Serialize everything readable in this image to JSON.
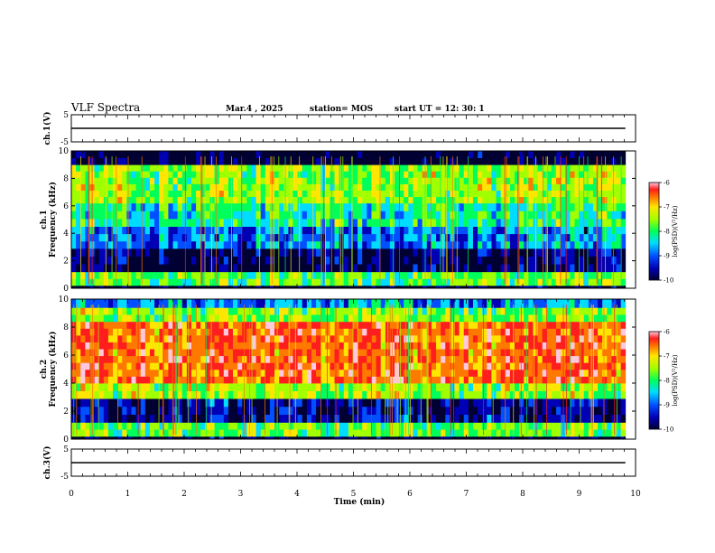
{
  "header": {
    "title": "VLF Spectra",
    "date": "Mar.4 , 2025",
    "station": "station= MOS",
    "start_ut": "start UT =  12: 30: 1"
  },
  "chart_data": [
    {
      "type": "line",
      "name": "ch1-voltage",
      "ylabel": "ch.1(V)",
      "ylim": [
        -5,
        5
      ],
      "yticks": [
        "5",
        "-5"
      ],
      "x": [
        0,
        9.82
      ],
      "values": [
        0,
        0
      ],
      "color": "#000000"
    },
    {
      "type": "heatmap",
      "name": "ch1-spectrogram",
      "ylabel": "ch.1\nFrequency (kHz)",
      "ylim": [
        0,
        10
      ],
      "yticks": [
        "0",
        "2",
        "4",
        "6",
        "8",
        "10"
      ],
      "xlim": [
        0,
        10
      ],
      "data_end_min": 9.82,
      "bands_khz": [
        {
          "from": 0.0,
          "to": 0.2,
          "level": -9.8
        },
        {
          "from": 0.2,
          "to": 1.2,
          "level": -8.0
        },
        {
          "from": 1.2,
          "to": 2.9,
          "level": -9.7
        },
        {
          "from": 2.9,
          "to": 4.5,
          "level": -8.9
        },
        {
          "from": 4.5,
          "to": 6.2,
          "level": -8.3
        },
        {
          "from": 6.2,
          "to": 9.0,
          "level": -7.8
        },
        {
          "from": 9.0,
          "to": 10.0,
          "level": -9.9
        }
      ],
      "colorbar": {
        "label": "log(PSD)(V²/Hz)",
        "range": [
          -10,
          -6
        ],
        "ticks": [
          "-6",
          "-7",
          "-8",
          "-9",
          "-10"
        ]
      }
    },
    {
      "type": "heatmap",
      "name": "ch2-spectrogram",
      "ylabel": "ch.2\nFrequency (kHz)",
      "ylim": [
        0,
        10
      ],
      "yticks": [
        "0",
        "2",
        "4",
        "6",
        "8",
        "10"
      ],
      "xlim": [
        0,
        10
      ],
      "data_end_min": 9.82,
      "bands_khz": [
        {
          "from": 0.0,
          "to": 0.2,
          "level": -9.8
        },
        {
          "from": 0.2,
          "to": 1.2,
          "level": -8.0
        },
        {
          "from": 1.2,
          "to": 2.9,
          "level": -9.5
        },
        {
          "from": 2.9,
          "to": 4.0,
          "level": -7.8
        },
        {
          "from": 4.0,
          "to": 8.4,
          "level": -6.9
        },
        {
          "from": 8.4,
          "to": 9.4,
          "level": -7.9
        },
        {
          "from": 9.4,
          "to": 10.0,
          "level": -8.8
        }
      ],
      "colorbar": {
        "label": "log(PSD)(V²/Hz)",
        "range": [
          -10,
          -6
        ],
        "ticks": [
          "-6",
          "-7",
          "-8",
          "-9",
          "-10"
        ]
      }
    },
    {
      "type": "line",
      "name": "ch3-voltage",
      "ylabel": "ch.3(V)",
      "ylim": [
        -5,
        5
      ],
      "yticks": [
        "5",
        "-5"
      ],
      "x": [
        0,
        9.82
      ],
      "values": [
        0,
        0
      ],
      "color": "#000000"
    }
  ],
  "xaxis": {
    "xlabel": "Time (min)",
    "range": [
      0,
      10
    ],
    "ticks": [
      "0",
      "1",
      "2",
      "3",
      "4",
      "5",
      "6",
      "7",
      "8",
      "9",
      "10"
    ]
  },
  "colormap": [
    "#000033",
    "#0000b4",
    "#0050ff",
    "#00dcff",
    "#00ff5a",
    "#a0ff00",
    "#ffe600",
    "#ff7800",
    "#ff1e1e",
    "#ffc8dc"
  ]
}
